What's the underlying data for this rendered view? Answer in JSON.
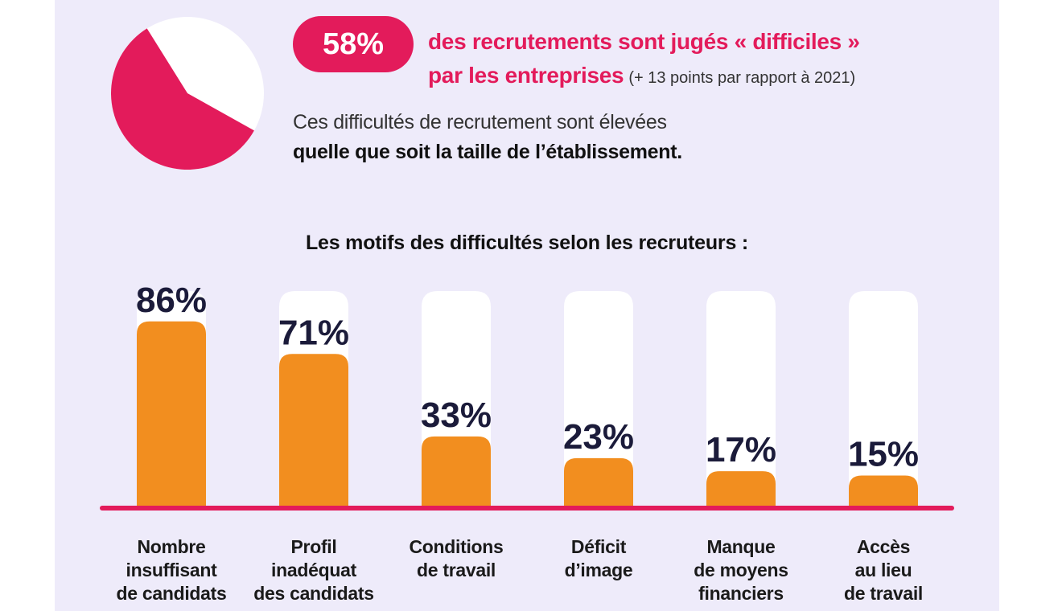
{
  "colors": {
    "accent": "#e31b5b",
    "bar": "#f28e1f",
    "track": "#ffffff",
    "value_text": "#1b1b3a",
    "background": "#eeebfa"
  },
  "header": {
    "pie_value": 58,
    "badge_text": "58%",
    "line1": "des recrutements sont jugés « difficiles »",
    "line2": "par les entreprises",
    "line2_note": "(+ 13 points par rapport à 2021)",
    "sub1": "Ces difficultés de recrutement sont élevées",
    "sub2": "quelle que soit la taille de l’établissement."
  },
  "chart_data": {
    "type": "bar",
    "title": "Les motifs des difficultés selon les recruteurs  :",
    "categories": [
      [
        "Nombre",
        "insuffisant",
        "de candidats"
      ],
      [
        "Profil",
        "inadéquat",
        "des candidats"
      ],
      [
        "Conditions",
        "de travail"
      ],
      [
        "Déficit",
        "d’image"
      ],
      [
        "Manque",
        "de moyens",
        "financiers"
      ],
      [
        "Accès",
        "au lieu",
        "de travail"
      ]
    ],
    "values": [
      86,
      71,
      33,
      23,
      17,
      15
    ],
    "value_labels": [
      "86%",
      "71%",
      "33%",
      "23%",
      "17%",
      "15%"
    ],
    "ylim": [
      0,
      100
    ],
    "grid": false,
    "legend": "none"
  }
}
